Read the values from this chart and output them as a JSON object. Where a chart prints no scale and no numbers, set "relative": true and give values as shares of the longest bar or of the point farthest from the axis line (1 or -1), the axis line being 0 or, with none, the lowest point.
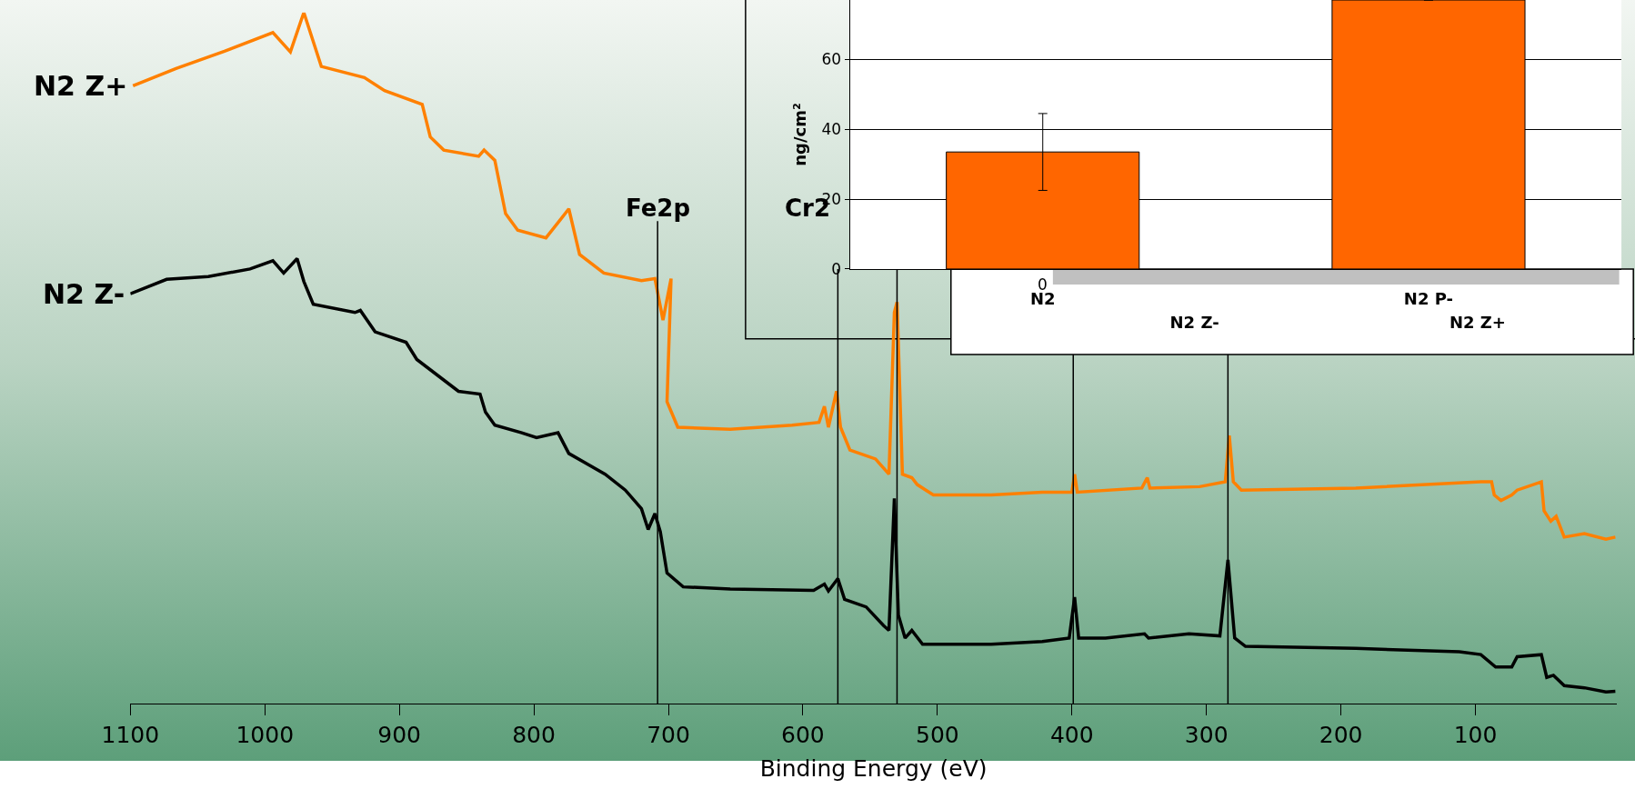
{
  "chart_data": [
    {
      "type": "line",
      "xlabel": "Binding Energy (eV)",
      "relative": true,
      "xlim": [
        1100,
        -5
      ],
      "xticks": [
        1100,
        1000,
        900,
        800,
        700,
        600,
        500,
        400,
        300,
        200,
        100
      ],
      "marker": "none",
      "line_style": "solid",
      "ref_lines": [
        {
          "axis": "x",
          "value": 708,
          "label": "Fe2p",
          "color": "#000000"
        },
        {
          "axis": "x",
          "value": 574,
          "label": "Cr2",
          "color": "#000000"
        },
        {
          "axis": "x",
          "value": 530,
          "color": "#000000"
        },
        {
          "axis": "x",
          "value": 399,
          "color": "#000000"
        },
        {
          "axis": "x",
          "value": 284,
          "color": "#000000"
        }
      ],
      "series": [
        {
          "name": "N2 Z+",
          "color": "#ff8000",
          "x": [
            1098,
            1066,
            1030,
            994,
            981,
            971,
            958,
            926,
            911,
            883,
            877,
            867,
            841,
            837,
            829,
            821,
            812,
            791,
            780,
            774,
            766,
            748,
            720,
            710,
            704,
            698,
            701,
            693,
            654,
            608,
            588,
            584,
            581,
            575,
            572,
            565,
            546,
            536,
            532,
            530,
            526,
            519,
            515,
            503,
            460,
            422,
            400,
            398,
            396,
            348,
            344,
            342,
            305,
            286,
            283,
            280,
            274,
            189,
            96,
            88,
            86,
            81,
            73,
            69,
            51,
            49,
            44,
            40,
            34,
            19,
            3,
            -4
          ],
          "values": [
            0.894,
            0.919,
            0.944,
            0.971,
            0.943,
            1.0,
            0.922,
            0.906,
            0.887,
            0.867,
            0.82,
            0.801,
            0.792,
            0.801,
            0.786,
            0.709,
            0.685,
            0.674,
            0.701,
            0.716,
            0.65,
            0.623,
            0.612,
            0.615,
            0.555,
            0.615,
            0.437,
            0.4,
            0.397,
            0.403,
            0.407,
            0.43,
            0.4,
            0.452,
            0.4,
            0.367,
            0.354,
            0.332,
            0.566,
            0.581,
            0.332,
            0.327,
            0.317,
            0.302,
            0.302,
            0.306,
            0.306,
            0.332,
            0.306,
            0.312,
            0.327,
            0.312,
            0.314,
            0.321,
            0.388,
            0.321,
            0.309,
            0.312,
            0.321,
            0.321,
            0.302,
            0.294,
            0.302,
            0.309,
            0.321,
            0.279,
            0.264,
            0.271,
            0.241,
            0.246,
            0.238,
            0.241
          ]
        },
        {
          "name": "N2 Z-",
          "color": "#000000",
          "x": [
            1100,
            1073,
            1042,
            1011,
            994,
            986,
            976,
            971,
            964,
            933,
            929,
            918,
            895,
            887,
            856,
            840,
            836,
            829,
            809,
            798,
            782,
            774,
            747,
            732,
            720,
            715,
            710,
            706,
            701,
            689,
            654,
            592,
            584,
            581,
            574,
            569,
            553,
            540,
            536,
            532,
            529,
            524,
            519,
            511,
            460,
            422,
            402,
            398,
            395,
            375,
            346,
            343,
            313,
            290,
            284,
            279,
            271,
            189,
            112,
            96,
            85,
            73,
            69,
            51,
            47,
            42,
            34,
            19,
            3,
            -4
          ],
          "values": [
            0.593,
            0.614,
            0.618,
            0.629,
            0.641,
            0.623,
            0.644,
            0.611,
            0.578,
            0.566,
            0.569,
            0.538,
            0.523,
            0.498,
            0.452,
            0.448,
            0.422,
            0.403,
            0.392,
            0.385,
            0.392,
            0.362,
            0.332,
            0.309,
            0.282,
            0.252,
            0.275,
            0.249,
            0.189,
            0.169,
            0.166,
            0.164,
            0.173,
            0.163,
            0.181,
            0.151,
            0.14,
            0.113,
            0.106,
            0.297,
            0.128,
            0.095,
            0.106,
            0.086,
            0.086,
            0.09,
            0.095,
            0.154,
            0.095,
            0.095,
            0.101,
            0.095,
            0.101,
            0.098,
            0.208,
            0.095,
            0.083,
            0.08,
            0.075,
            0.071,
            0.053,
            0.053,
            0.068,
            0.071,
            0.038,
            0.041,
            0.026,
            0.023,
            0.017,
            0.018
          ]
        }
      ]
    },
    {
      "type": "bar",
      "ylabel": "ng/cm²",
      "categories": [
        "N2",
        "N2 P-"
      ],
      "values": [
        33.5,
        77
      ],
      "errors": [
        [
          22.5,
          44.5
        ],
        null
      ],
      "colors": [
        "#ff6600",
        "#ff6600"
      ],
      "ylim": [
        0,
        77
      ],
      "yticks": [
        0,
        20,
        40,
        60
      ],
      "grid": "y"
    },
    {
      "type": "other",
      "categories": [
        "N2 Z-",
        "N2 Z+"
      ],
      "annotations": [
        "0"
      ]
    }
  ]
}
